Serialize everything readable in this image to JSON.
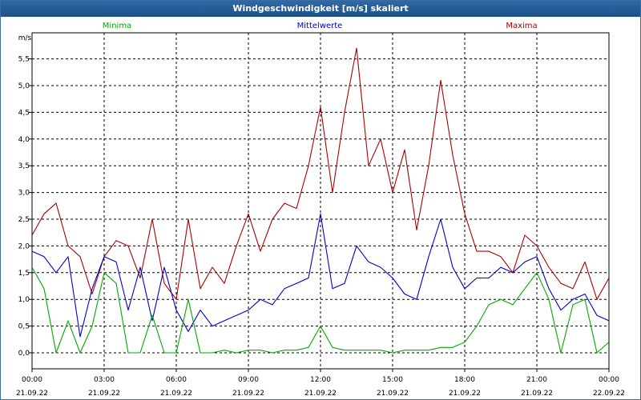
{
  "window": {
    "title": "Windgeschwindigkeit [m/s] skaliert"
  },
  "chart_data": {
    "type": "line",
    "title": "Windgeschwindigkeit [m/s] skaliert",
    "ylabel": "m/s",
    "xlabel": "",
    "ylim": [
      -0.3,
      6.0
    ],
    "yticks": [
      "0,0",
      "0,5",
      "1,0",
      "1,5",
      "2,0",
      "2,5",
      "3,0",
      "3,5",
      "4,0",
      "4,5",
      "5,0",
      "5,5"
    ],
    "ytick_values": [
      0,
      0.5,
      1,
      1.5,
      2,
      2.5,
      3,
      3.5,
      4,
      4.5,
      5,
      5.5
    ],
    "xticks": [
      {
        "time": "00:00",
        "date": "21.09.22"
      },
      {
        "time": "03:00",
        "date": "21.09.22"
      },
      {
        "time": "06:00",
        "date": "21.09.22"
      },
      {
        "time": "09:00",
        "date": "21.09.22"
      },
      {
        "time": "12:00",
        "date": "21.09.22"
      },
      {
        "time": "15:00",
        "date": "21.09.22"
      },
      {
        "time": "18:00",
        "date": "21.09.22"
      },
      {
        "time": "21:00",
        "date": "21.09.22"
      },
      {
        "time": "00:00",
        "date": "22.09.22"
      }
    ],
    "xlim_hours": [
      0,
      24
    ],
    "grid": true,
    "legend": [
      "Minima",
      "Mittelwerte",
      "Maxima"
    ],
    "colors": {
      "Minima": "#00aa00",
      "Mittelwerte": "#0000cc",
      "Maxima": "#aa0000"
    },
    "hours": [
      0,
      0.5,
      1,
      1.5,
      2,
      2.5,
      3,
      3.5,
      4,
      4.5,
      5,
      5.5,
      6,
      6.5,
      7,
      7.5,
      8,
      8.5,
      9,
      9.5,
      10,
      10.5,
      11,
      11.5,
      12,
      12.5,
      13,
      13.5,
      14,
      14.5,
      15,
      15.5,
      16,
      16.5,
      17,
      17.5,
      18,
      18.5,
      19,
      19.5,
      20,
      20.5,
      21,
      21.5,
      22,
      22.5,
      23,
      23.5,
      24
    ],
    "series": [
      {
        "name": "Maxima",
        "values": [
          2.2,
          2.6,
          2.8,
          2.0,
          1.8,
          1.1,
          1.8,
          2.1,
          2.0,
          1.4,
          2.5,
          1.3,
          1.0,
          2.5,
          1.2,
          1.6,
          1.3,
          2.0,
          2.6,
          1.9,
          2.5,
          2.8,
          2.7,
          3.5,
          4.6,
          3.0,
          4.5,
          5.7,
          3.5,
          4.0,
          3.0,
          3.8,
          2.3,
          3.5,
          5.1,
          3.7,
          2.6,
          1.9,
          1.9,
          1.8,
          1.5,
          2.2,
          2.0,
          1.6,
          1.3,
          1.2,
          1.7,
          1.0,
          1.4
        ]
      },
      {
        "name": "Mittelwerte",
        "values": [
          1.9,
          1.8,
          1.5,
          1.8,
          0.3,
          1.2,
          1.8,
          1.7,
          0.8,
          1.6,
          0.6,
          1.6,
          0.8,
          0.4,
          0.8,
          0.5,
          0.6,
          0.7,
          0.8,
          1.0,
          0.9,
          1.2,
          1.3,
          1.4,
          2.6,
          1.2,
          1.3,
          2.0,
          1.7,
          1.6,
          1.4,
          1.1,
          1.0,
          1.8,
          2.5,
          1.6,
          1.2,
          1.4,
          1.4,
          1.6,
          1.5,
          1.7,
          1.8,
          1.2,
          0.8,
          1.0,
          1.1,
          0.7,
          0.6
        ]
      },
      {
        "name": "Minima",
        "values": [
          1.6,
          1.2,
          0.0,
          0.6,
          0.0,
          0.5,
          1.5,
          1.3,
          0.0,
          0.0,
          0.7,
          0.0,
          0.0,
          1.0,
          0.0,
          0.0,
          0.05,
          0.0,
          0.05,
          0.05,
          0.0,
          0.05,
          0.05,
          0.1,
          0.5,
          0.1,
          0.05,
          0.05,
          0.05,
          0.05,
          0.0,
          0.05,
          0.05,
          0.05,
          0.1,
          0.1,
          0.2,
          0.5,
          0.9,
          1.0,
          0.9,
          1.2,
          1.5,
          1.0,
          0.0,
          0.9,
          1.0,
          0.0,
          0.2
        ]
      }
    ]
  }
}
